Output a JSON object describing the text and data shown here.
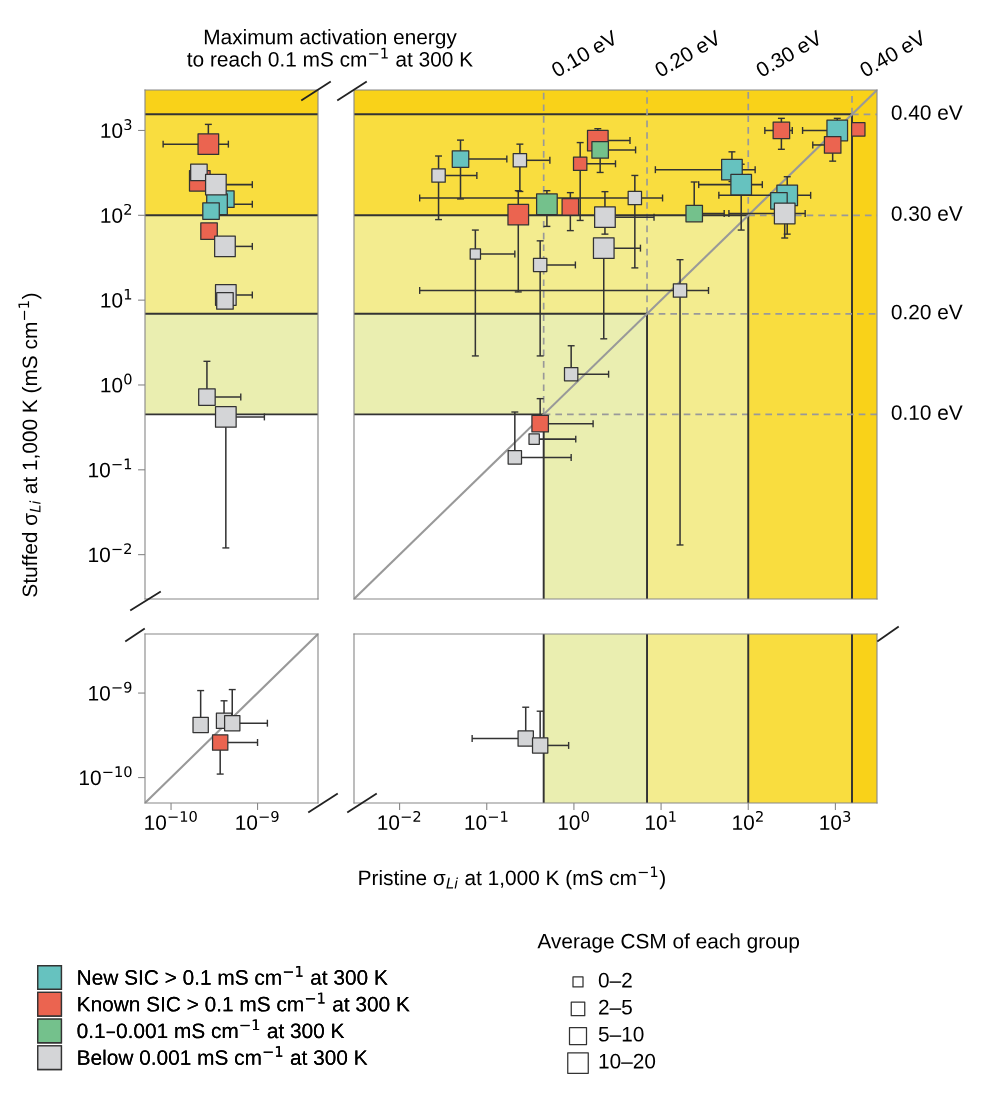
{
  "chart_data": [
    {
      "type": "bubble",
      "marker": "square",
      "log": "xy",
      "title": "Maximum activation energy\nto reach 0.1 mS cm$^{−1}$ at 300 K",
      "ylabel": "Stuffed σ$_{Li}$ at 1,000 K (mS cm$^{−1}$)",
      "tick_labels": "y",
      "xlim": [
        5e-11,
        5e-09
      ],
      "ylim": [
        0.003,
        3000
      ],
      "yticks": [
        {
          "value": 0.01,
          "label": "10$^{−2}$"
        },
        {
          "value": 0.1,
          "label": "10$^{−1}$"
        },
        {
          "value": 1,
          "label": "10$^{0}$"
        },
        {
          "value": 10,
          "label": "10$^{1}$"
        },
        {
          "value": 100,
          "label": "10$^{2}$"
        },
        {
          "value": 1000,
          "label": "10$^{3}$"
        }
      ],
      "bands": [
        {
          "axis": "y",
          "from": 0.45,
          "to": 6.9,
          "color": "#eaeeb0"
        },
        {
          "axis": "y",
          "from": 6.9,
          "to": 100,
          "color": "#f3ec8f"
        },
        {
          "axis": "y",
          "from": 100,
          "to": 1550,
          "color": "#f9dd3f"
        },
        {
          "axis": "y",
          "from": 1550,
          "to": 3000,
          "color": "#f9d219"
        }
      ],
      "ref_lines": [
        {
          "axis": "y",
          "value": 0.45,
          "color": "#333333",
          "line_style": "solid"
        },
        {
          "axis": "y",
          "value": 6.9,
          "color": "#333333",
          "line_style": "solid"
        },
        {
          "axis": "y",
          "value": 100,
          "color": "#333333",
          "line_style": "solid"
        },
        {
          "axis": "y",
          "value": 1550,
          "color": "#333333",
          "line_style": "solid"
        }
      ],
      "series": [
        {
          "color": "#66c2bf",
          "x": [
            4.3e-10,
            3.4e-10,
            2.9e-10
          ],
          "values": [
            155,
            135,
            112
          ],
          "sizes": [
            0.64,
            1,
            0.64
          ],
          "errors": [
            null,
            null,
            null
          ],
          "xerrors": [
            null,
            [
              3.4e-10,
              8.7e-10
            ],
            null
          ]
        },
        {
          "color": "#eb6450",
          "x": [
            2.7e-10,
            2.15e-10,
            2.75e-10
          ],
          "values": [
            690,
            255,
            65
          ],
          "sizes": [
            1,
            1,
            0.64
          ],
          "errors": [
            [
              690,
              1180
            ],
            null,
            null
          ],
          "xerrors": [
            [
              8.1e-11,
              4.6e-10
            ],
            null,
            null
          ]
        },
        {
          "color": "#d4d5d7",
          "x": [
            2.1e-10,
            3.3e-10,
            4.2e-10,
            4.3e-10,
            4.2e-10,
            2.6e-10,
            4.3e-10
          ],
          "values": [
            320,
            230,
            43,
            11.5,
            9.8,
            0.72,
            0.42
          ],
          "sizes": [
            0.64,
            1,
            1,
            1,
            0.64,
            0.64,
            1
          ],
          "errors": [
            null,
            null,
            null,
            null,
            null,
            [
              0.72,
              1.9
            ],
            [
              0.012,
              0.42
            ]
          ],
          "xerrors": [
            null,
            [
              3.3e-10,
              8.7e-10
            ],
            [
              4.2e-10,
              8.7e-10
            ],
            [
              4.3e-10,
              8.7e-10
            ],
            null,
            [
              2.6e-10,
              6.4e-10
            ],
            [
              4.3e-10,
              1.2e-09
            ]
          ]
        }
      ]
    },
    {
      "type": "bubble",
      "marker": "square",
      "log": "xy",
      "tick_labels": false,
      "legend": "bottom left",
      "xlim": [
        0.003,
        3000
      ],
      "ylim": [
        0.003,
        3000
      ],
      "bands": [
        {
          "axis": "y",
          "from": 0.45,
          "to": 6.9,
          "color": "#eaeeb0"
        },
        {
          "axis": "x",
          "from": 0.45,
          "to": 6.9,
          "color": "#eaeeb0"
        },
        {
          "axis": "y",
          "from": 6.9,
          "to": 100,
          "color": "#f3ec8f"
        },
        {
          "axis": "x",
          "from": 6.9,
          "to": 100,
          "color": "#f3ec8f"
        },
        {
          "axis": "y",
          "from": 100,
          "to": 1550,
          "color": "#f9dd3f"
        },
        {
          "axis": "x",
          "from": 100,
          "to": 1550,
          "color": "#f9dd3f"
        },
        {
          "axis": "y",
          "from": 1550,
          "to": 3000,
          "color": "#f9d219"
        },
        {
          "axis": "x",
          "from": 1550,
          "to": 3000,
          "color": "#f9d219"
        }
      ],
      "ref_lines": [
        {
          "axis": "x",
          "value": 1550,
          "color": "#333333",
          "line_style": "solid"
        },
        {
          "axis": "y",
          "value": 1550,
          "color": "#333333",
          "line_style": "solid"
        },
        {
          "axis": "x",
          "value": 0.45,
          "label": "0.10 eV",
          "color": "#999999",
          "line_style": "dashed"
        },
        {
          "axis": "x",
          "value": 6.9,
          "label": "0.20 eV",
          "color": "#999999",
          "line_style": "dashed"
        },
        {
          "axis": "x",
          "value": 100,
          "label": "0.30 eV",
          "color": "#999999",
          "line_style": "dashed"
        },
        {
          "axis": "x",
          "value": 1550,
          "label": "0.40 eV",
          "color": "#999999",
          "line_style": "dashed"
        },
        {
          "axis": "y",
          "value": 0.45,
          "label": "0.10 eV",
          "color": "#999999",
          "line_style": "dashed"
        },
        {
          "axis": "y",
          "value": 6.9,
          "label": "0.20 eV",
          "color": "#999999",
          "line_style": "dashed"
        },
        {
          "axis": "y",
          "value": 100,
          "label": "0.30 eV",
          "color": "#999999",
          "line_style": "dashed"
        },
        {
          "axis": "y",
          "value": 1550,
          "label": "0.40 eV",
          "color": "#999999",
          "line_style": "dashed"
        },
        {
          "axis": "x",
          "value": 0.45,
          "color": "#333333",
          "line_style": "solid"
        },
        {
          "axis": "x",
          "value": 6.9,
          "color": "#333333",
          "line_style": "solid"
        },
        {
          "axis": "x",
          "value": 100,
          "color": "#333333",
          "line_style": "solid"
        },
        {
          "axis": "y",
          "value": 0.45,
          "color": "#333333",
          "line_style": "solid"
        },
        {
          "axis": "y",
          "value": 6.9,
          "color": "#333333",
          "line_style": "solid"
        },
        {
          "axis": "y",
          "value": 100,
          "color": "#333333",
          "line_style": "solid"
        }
      ],
      "series": [
        {
          "type": "line",
          "marker": "none",
          "color": "#999999",
          "x": [
            0.003,
            3000
          ],
          "values": [
            0.003,
            3000
          ]
        },
        {
          "name": "New SIC > 0.1 mS cm$^{−1}$ at 300 K",
          "color": "#66c2bf",
          "x": [
            0.05,
            65,
            83,
            280,
            225,
            1050
          ],
          "values": [
            460,
            345,
            230,
            172,
            148,
            1000
          ],
          "sizes": [
            0.64,
            1,
            1,
            1,
            0.64,
            1
          ],
          "errors": [
            [
              156,
              770
            ],
            [
              250,
              560
            ],
            [
              67,
              400
            ],
            [
              60,
              285
            ],
            null,
            [
              1000,
              1390
            ]
          ],
          "xerrors": [
            [
              0.05,
              0.17
            ],
            [
              8.6,
              120
            ],
            [
              27,
              145
            ],
            [
              46,
              520
            ],
            null,
            [
              420,
              1050
            ]
          ]
        },
        {
          "name": "Known SIC > 0.1 mS cm$^{−1}$ at 300 K",
          "color": "#eb6450",
          "x": [
            1.88,
            1.18,
            240,
            930,
            1830,
            0.23,
            0.91,
            0.41
          ],
          "values": [
            760,
            405,
            1000,
            675,
            1030,
            102,
            126,
            0.35
          ],
          "sizes": [
            1,
            0.42,
            0.64,
            0.64,
            0.42,
            1,
            0.64,
            0.64
          ],
          "errors": [
            [
              760,
              1050
            ],
            [
              87,
              720
            ],
            [
              600,
              1390
            ],
            [
              435,
              675
            ],
            null,
            [
              12.5,
              195
            ],
            [
              66,
              185
            ],
            [
              0.35,
              0.69
            ]
          ],
          "xerrors": [
            [
              1.88,
              4.4
            ],
            [
              1.18,
              3.0
            ],
            [
              155,
              320
            ],
            [
              550,
              930
            ],
            null,
            null,
            null,
            [
              0.41,
              1.66
            ]
          ]
        },
        {
          "name": "0.1–0.001 mS cm$^{−1}$ at 300 K",
          "color": "#74c18c",
          "x": [
            2.0,
            0.49,
            24
          ],
          "values": [
            590,
            135,
            105
          ],
          "sizes": [
            0.64,
            1,
            0.64
          ],
          "errors": [
            [
              320,
              590
            ],
            [
              74,
              195
            ],
            [
              105,
              247
            ]
          ],
          "xerrors": [
            [
              2.0,
              5.1
            ],
            null,
            [
              24,
              53
            ]
          ]
        },
        {
          "name": "Below 0.001 mS cm$^{−1}$ at 300 K",
          "color": "#d4d5d7",
          "x": [
            0.028,
            0.24,
            5.0,
            2.27,
            0.074,
            0.41,
            2.2,
            16.5,
            0.93,
            0.35,
            0.21,
            262
          ],
          "values": [
            295,
            445,
            160,
            95,
            35,
            26,
            41,
            13,
            1.34,
            0.23,
            0.14,
            105
          ],
          "sizes": [
            0.42,
            0.42,
            0.42,
            1,
            0.25,
            0.42,
            1,
            0.42,
            0.42,
            0.25,
            0.42,
            1
          ],
          "errors": [
            [
              89,
              500
            ],
            [
              191,
              690
            ],
            [
              24,
              295
            ],
            [
              60,
              190
            ],
            [
              2.2,
              67
            ],
            [
              2.2,
              50
            ],
            [
              3.5,
              41
            ],
            [
              0.013,
              30
            ],
            [
              1.34,
              2.9
            ],
            null,
            [
              0.14,
              0.48
            ],
            [
              54,
              105
            ]
          ],
          "xerrors": [
            [
              0.028,
              0.077
            ],
            [
              0.24,
              0.53
            ],
            [
              0.017,
              10.4
            ],
            [
              2.27,
              8.3
            ],
            [
              0.074,
              0.21
            ],
            [
              0.41,
              1.04
            ],
            [
              2.2,
              5.8
            ],
            [
              0.017,
              35
            ],
            [
              0.93,
              2.5
            ],
            [
              0.35,
              1.05
            ],
            [
              0.21,
              0.93
            ],
            [
              60,
              450
            ]
          ]
        }
      ]
    },
    {
      "type": "scatter",
      "marker": "square",
      "log": "xy",
      "xlim": [
        5e-11,
        5e-09
      ],
      "ylim": [
        5e-11,
        5e-09
      ],
      "xticks": [
        {
          "value": 1e-10,
          "label": "10$^{−10}$"
        },
        {
          "value": 1e-09,
          "label": "10$^{−9}$"
        }
      ],
      "yticks": [
        {
          "value": 1e-10,
          "label": "10$^{−10}$"
        },
        {
          "value": 1e-09,
          "label": "10$^{−9}$"
        }
      ],
      "series": [
        {
          "type": "line",
          "marker": "none",
          "color": "#999999",
          "x": [
            5e-11,
            5e-09
          ],
          "values": [
            5e-11,
            5e-09
          ]
        },
        {
          "color": "#eb6450",
          "x": [
            3.7e-10
          ],
          "values": [
            2.6e-10
          ],
          "errors": [
            [
              1.1e-10,
              2.6e-10
            ]
          ],
          "xerrors": [
            [
              3.7e-10,
              1e-09
            ]
          ]
        },
        {
          "color": "#d4d5d7",
          "x": [
            2.2e-10,
            4.1e-10,
            5.1e-10
          ],
          "values": [
            4.2e-10,
            4.7e-10,
            4.4e-10
          ],
          "errors": [
            [
              4.2e-10,
              1.07e-09
            ],
            [
              4.7e-10,
              8.1e-10
            ],
            [
              4.4e-10,
              1.1e-09
            ]
          ],
          "xerrors": [
            null,
            null,
            [
              5.1e-10,
              1.3e-09
            ]
          ]
        }
      ]
    },
    {
      "type": "scatter",
      "marker": "square",
      "log": "xy",
      "tick_labels": "x",
      "xlabel": "Pristine σ$_{Li}$ at 1,000 K (mS cm$^{−1}$)",
      "xlim": [
        0.003,
        3000
      ],
      "ylim": [
        5e-11,
        5e-09
      ],
      "xticks": [
        {
          "value": 0.01,
          "label": "10$^{−2}$"
        },
        {
          "value": 0.1,
          "label": "10$^{−1}$"
        },
        {
          "value": 1,
          "label": "10$^{0}$"
        },
        {
          "value": 10,
          "label": "10$^{1}$"
        },
        {
          "value": 100,
          "label": "10$^{2}$"
        },
        {
          "value": 1000,
          "label": "10$^{3}$"
        }
      ],
      "bands": [
        {
          "axis": "x",
          "from": 0.45,
          "to": 6.9,
          "color": "#eaeeb0"
        },
        {
          "axis": "x",
          "from": 6.9,
          "to": 100,
          "color": "#f3ec8f"
        },
        {
          "axis": "x",
          "from": 100,
          "to": 1550,
          "color": "#f9dd3f"
        },
        {
          "axis": "x",
          "from": 1550,
          "to": 3000,
          "color": "#f9d219"
        }
      ],
      "ref_lines": [
        {
          "axis": "x",
          "value": 0.45,
          "color": "#333333",
          "line_style": "solid"
        },
        {
          "axis": "x",
          "value": 6.9,
          "color": "#333333",
          "line_style": "solid"
        },
        {
          "axis": "x",
          "value": 100,
          "color": "#333333",
          "line_style": "solid"
        },
        {
          "axis": "x",
          "value": 1550,
          "color": "#333333",
          "line_style": "solid"
        }
      ],
      "series": [
        {
          "color": "#d4d5d7",
          "x": [
            0.28,
            0.41
          ],
          "values": [
            2.9e-10,
            2.4e-10
          ],
          "errors": [
            [
              2.9e-10,
              6.8e-10
            ],
            [
              2.4e-10,
              6.1e-10
            ]
          ],
          "xerrors": [
            [
              0.068,
              0.28
            ],
            [
              0.41,
              0.87
            ]
          ]
        }
      ]
    },
    {
      "type": "other",
      "title": "Average CSM of each group",
      "annotations": [
        "0–2",
        "2–5",
        "5–10",
        "10–20"
      ]
    }
  ]
}
